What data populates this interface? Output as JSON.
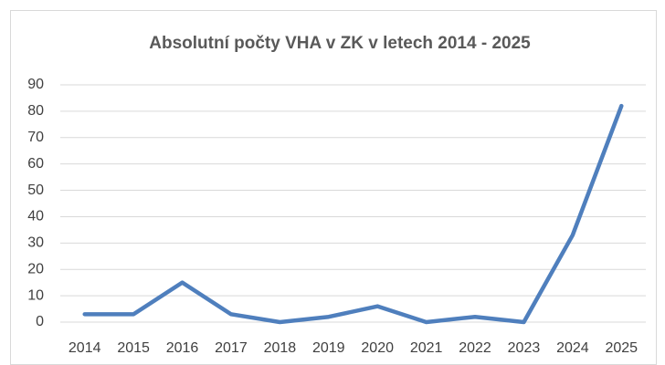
{
  "chart_data": {
    "type": "line",
    "title": "Absolutní počty VHA v ZK v letech 2014 - 2025",
    "categories": [
      "2014",
      "2015",
      "2016",
      "2017",
      "2018",
      "2019",
      "2020",
      "2021",
      "2022",
      "2023",
      "2024",
      "2025"
    ],
    "values": [
      3,
      3,
      15,
      3,
      0,
      2,
      6,
      0,
      2,
      0,
      33,
      82
    ],
    "color": "#4f7fbd",
    "ylim": [
      0,
      90
    ],
    "yticks": [
      0,
      10,
      20,
      30,
      40,
      50,
      60,
      70,
      80,
      90
    ],
    "grid": true
  }
}
